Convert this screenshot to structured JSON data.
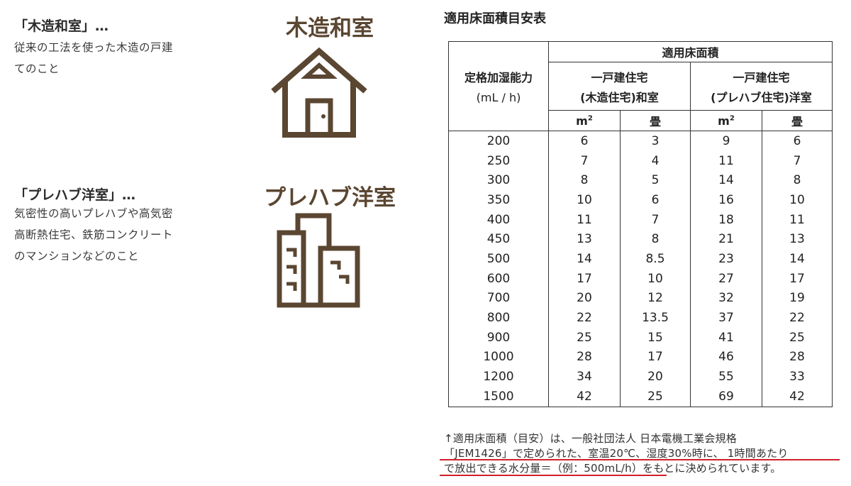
{
  "left": {
    "wood": {
      "term": "「木造和室」…",
      "desc": "従来の工法を使った木造の戸建\nてのこと"
    },
    "prefab": {
      "term": "「プレハブ洋室」…",
      "desc": "気密性の高いプレハブや高気密\n高断熱住宅、鉄筋コンクリート\nのマンションなどのこと"
    }
  },
  "middle": {
    "wood_title": "木造和室",
    "wood_icon": "house-icon",
    "prefab_title": "プレハブ洋室",
    "prefab_icon": "building-icon",
    "icon_color": "#5a4631"
  },
  "table": {
    "title": "適用床面積目安表",
    "header": {
      "capacity": "定格加湿能力",
      "capacity_unit": "(mL / h)",
      "area": "適用床面積",
      "wood_line1": "一戸建住宅",
      "wood_line2": "(木造住宅)和室",
      "prefab_line1": "一戸建住宅",
      "prefab_line2": "(プレハブ住宅)洋室",
      "m2": "m",
      "m2_sup": "2",
      "jo": "畳"
    },
    "rows": [
      [
        "200",
        "6",
        "3",
        "9",
        "6"
      ],
      [
        "250",
        "7",
        "4",
        "11",
        "7"
      ],
      [
        "300",
        "8",
        "5",
        "14",
        "8"
      ],
      [
        "350",
        "10",
        "6",
        "16",
        "10"
      ],
      [
        "400",
        "11",
        "7",
        "18",
        "11"
      ],
      [
        "450",
        "13",
        "8",
        "21",
        "13"
      ],
      [
        "500",
        "14",
        "8.5",
        "23",
        "14"
      ],
      [
        "600",
        "17",
        "10",
        "27",
        "17"
      ],
      [
        "700",
        "20",
        "12",
        "32",
        "19"
      ],
      [
        "800",
        "22",
        "13.5",
        "37",
        "22"
      ],
      [
        "900",
        "25",
        "15",
        "41",
        "25"
      ],
      [
        "1000",
        "28",
        "17",
        "46",
        "28"
      ],
      [
        "1200",
        "34",
        "20",
        "55",
        "33"
      ],
      [
        "1500",
        "42",
        "25",
        "69",
        "42"
      ]
    ]
  },
  "note": {
    "line1": "↑適用床面積（目安）は、一般社団法人 日本電機工業会規格",
    "line2": "「JEM1426」で定められた、室温20℃、湿度30%時に、 1時間あたり",
    "line3a": "で放出できる水分量＝（例：500mL/h）",
    "line3b": "をもとに決められています。",
    "underline_color": "#d0202a"
  }
}
